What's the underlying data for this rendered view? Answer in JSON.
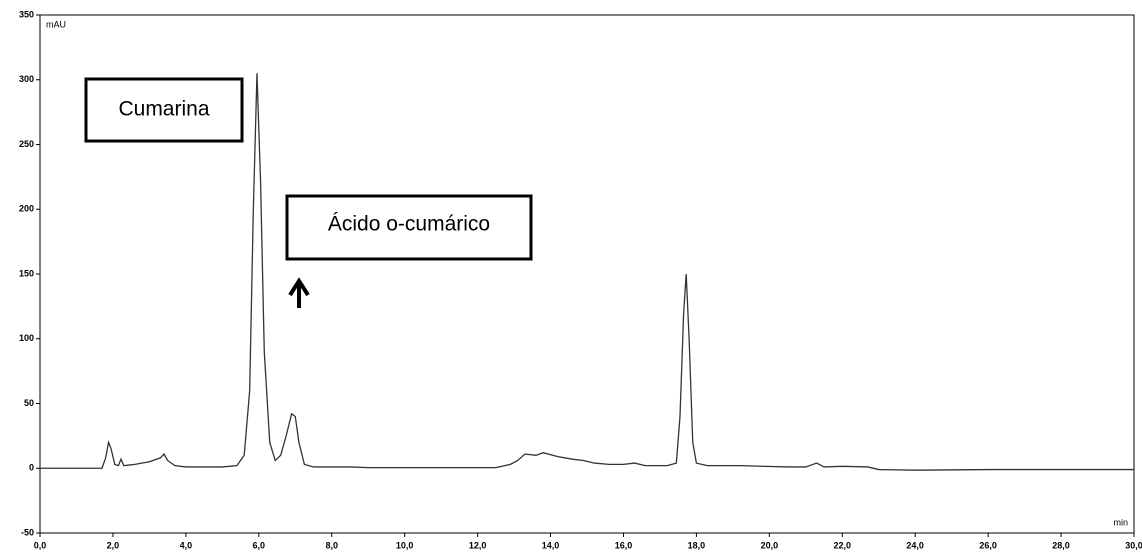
{
  "chart_data": {
    "type": "line",
    "y_label": "mAU",
    "x_label": "min",
    "color": "#333333",
    "xlim": [
      0,
      30
    ],
    "ylim": [
      -50,
      350
    ],
    "xticks": [
      {
        "value": 0,
        "label": "0,0"
      },
      {
        "value": 2,
        "label": "2,0"
      },
      {
        "value": 4,
        "label": "4,0"
      },
      {
        "value": 6,
        "label": "6,0"
      },
      {
        "value": 8,
        "label": "8,0"
      },
      {
        "value": 10,
        "label": "10,0"
      },
      {
        "value": 12,
        "label": "12,0"
      },
      {
        "value": 14,
        "label": "14,0"
      },
      {
        "value": 16,
        "label": "16,0"
      },
      {
        "value": 18,
        "label": "18,0"
      },
      {
        "value": 20,
        "label": "20,0"
      },
      {
        "value": 22,
        "label": "22,0"
      },
      {
        "value": 24,
        "label": "24,0"
      },
      {
        "value": 26,
        "label": "26,0"
      },
      {
        "value": 28,
        "label": "28,0"
      },
      {
        "value": 30,
        "label": "30,0"
      }
    ],
    "yticks": [
      -50,
      0,
      50,
      100,
      150,
      200,
      250,
      300,
      350
    ],
    "annotations": [
      "Cumarina",
      "Ácido o-cumárico"
    ],
    "x": [
      0,
      1.7,
      1.8,
      1.88,
      1.95,
      2.05,
      2.15,
      2.22,
      2.3,
      2.6,
      3.0,
      3.3,
      3.4,
      3.5,
      3.7,
      4.0,
      5.0,
      5.4,
      5.6,
      5.75,
      5.85,
      5.95,
      6.05,
      6.15,
      6.3,
      6.45,
      6.6,
      6.75,
      6.9,
      7.0,
      7.1,
      7.25,
      7.5,
      8.5,
      9.0,
      12.5,
      12.9,
      13.1,
      13.3,
      13.6,
      13.8,
      14.2,
      14.6,
      14.9,
      15.2,
      15.6,
      16.0,
      16.3,
      16.6,
      17.2,
      17.45,
      17.55,
      17.65,
      17.72,
      17.8,
      17.9,
      18.0,
      18.3,
      19.2,
      20.5,
      21.0,
      21.3,
      21.5,
      22.0,
      22.7,
      23.0,
      24,
      26,
      30
    ],
    "values": [
      0,
      0,
      8,
      20,
      15,
      3,
      2,
      7,
      2,
      3,
      5,
      8,
      11,
      6,
      2,
      1,
      1,
      2,
      10,
      60,
      200,
      305,
      220,
      90,
      20,
      6,
      10,
      25,
      42,
      40,
      20,
      3,
      1,
      1,
      0.5,
      0.5,
      3,
      6,
      11,
      10,
      12,
      9,
      7,
      6,
      4,
      3,
      3,
      4,
      2,
      2,
      4,
      40,
      120,
      150,
      100,
      20,
      4,
      2,
      2,
      1,
      1,
      4,
      1,
      1.5,
      1,
      -1,
      -1.5,
      -1,
      -1
    ]
  }
}
